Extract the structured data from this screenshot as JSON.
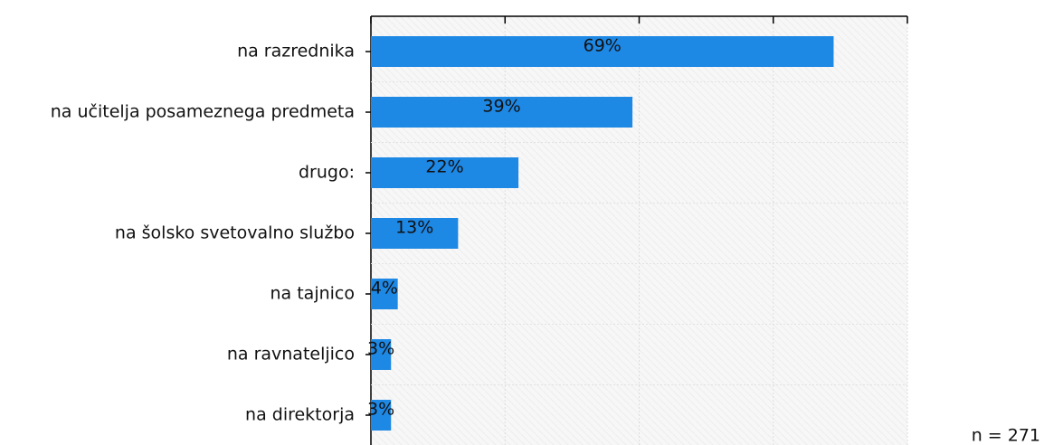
{
  "chart_data": {
    "type": "bar",
    "orientation": "horizontal",
    "categories": [
      "na razrednika",
      "na učitelja posameznega predmeta",
      "drugo:",
      "na šolsko svetovalno službo",
      "na tajnico",
      "na ravnateljico",
      "na direktorja"
    ],
    "values": [
      69,
      39,
      22,
      13,
      4,
      3,
      3
    ],
    "value_labels": [
      "69%",
      "39%",
      "22%",
      "13%",
      "4%",
      "3%",
      "3%"
    ],
    "color": "#1e88e5",
    "xlim": [
      0,
      80
    ],
    "xticks": [
      0,
      20,
      40,
      60,
      80
    ],
    "grid": true,
    "note": "n = 271"
  }
}
